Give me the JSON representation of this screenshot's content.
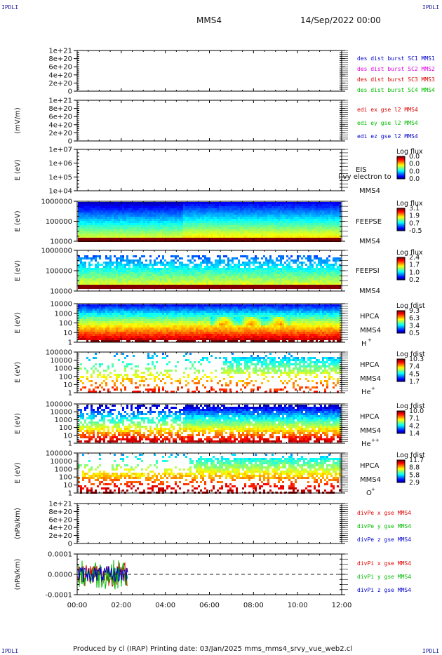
{
  "page": {
    "corner_tl": "IPDLI",
    "corner_tr": "IPDLI",
    "corner_bl": "IPDLI",
    "corner_br": "IPDLI",
    "title": "MMS4",
    "date": "14/Sep/2022 00:00",
    "footer": "Produced by cl (IRAP)   Printing date: 03/Jan/2025   mms_mms4_srvy_vue_web2.cl"
  },
  "colors": {
    "blue": "#0000cc",
    "magenta": "#dd00dd",
    "red": "#dd0000",
    "green": "#00bb00"
  },
  "chart_data": [
    {
      "type": "line",
      "id": "des-dist",
      "ylabel": "",
      "yticks": [
        "1e+21",
        "8e+20",
        "6e+20",
        "4e+20",
        "2e+20",
        "0"
      ],
      "ylim": [
        0,
        1e+21
      ],
      "series": [
        {
          "name": "des dist burst SC1 MMS1",
          "color": "#0000cc",
          "values": []
        },
        {
          "name": "des dist burst SC2 MMS2",
          "color": "#dd00dd",
          "values": []
        },
        {
          "name": "des dist burst SC3 MMS3",
          "color": "#dd0000",
          "values": []
        },
        {
          "name": "des dist burst SC4 MMS4",
          "color": "#00bb00",
          "values": []
        }
      ],
      "zero_line": true
    },
    {
      "type": "line",
      "id": "edi-e",
      "ylabel": "(mV/m)",
      "yticks": [
        "1e+21",
        "8e+20",
        "6e+20",
        "4e+20",
        "2e+20",
        "0"
      ],
      "ylim": [
        0,
        1e+21
      ],
      "series": [
        {
          "name": "edi ex gse l2 MMS4",
          "color": "#dd0000",
          "values": []
        },
        {
          "name": "edi ey gse l2 MMS4",
          "color": "#00bb00",
          "values": []
        },
        {
          "name": "edi ez gse l2 MMS4",
          "color": "#0000cc",
          "values": []
        }
      ],
      "zero_line": true
    },
    {
      "type": "heatmap",
      "id": "eis",
      "ylabel": "E (eV)",
      "yscale": "log",
      "yticks": [
        "1e+07",
        "1e+06",
        "1e+05",
        "1e+04"
      ],
      "ylim": [
        10000.0,
        10000000.0
      ],
      "labels": [
        "EIS",
        "MMS4"
      ],
      "overlay_text": "l)vy electron to",
      "colorbar": {
        "title": "Log flux",
        "ticks": [
          "0.0",
          "0.0",
          "0.0",
          "0.0"
        ]
      },
      "pattern": "empty"
    },
    {
      "type": "heatmap",
      "id": "feeps-e",
      "ylabel": "E (eV)",
      "yscale": "log",
      "yticks": [
        "1000000",
        "100000",
        "10000"
      ],
      "ylim": [
        10000.0,
        1000000.0
      ],
      "labels": [
        "FEEPSE",
        "MMS4"
      ],
      "colorbar": {
        "title": "Log flux",
        "ticks": [
          "3.1",
          "1.9",
          "0.7",
          "-0.5"
        ]
      },
      "pattern": "feepse"
    },
    {
      "type": "heatmap",
      "id": "feeps-i",
      "ylabel": "E (eV)",
      "yscale": "log",
      "yticks": [
        "1000000",
        "100000",
        "10000"
      ],
      "ylim": [
        10000.0,
        1000000.0
      ],
      "labels": [
        "FEEPSI",
        "MMS4"
      ],
      "colorbar": {
        "title": "Log flux",
        "ticks": [
          "2.4",
          "1.7",
          "1.0",
          "0.2"
        ]
      },
      "pattern": "feepsi"
    },
    {
      "type": "heatmap",
      "id": "hpca-h",
      "ylabel": "E (eV)",
      "yscale": "log",
      "yticks": [
        "10000",
        "1000",
        "100",
        "10",
        "1"
      ],
      "ylim": [
        1,
        10000.0
      ],
      "labels": [
        "HPCA",
        "MMS4"
      ],
      "species": "H",
      "charge": "+",
      "colorbar": {
        "title": "Log fdist",
        "ticks": [
          "9.3",
          "6.3",
          "3.4",
          "0.5"
        ]
      },
      "pattern": "hplus"
    },
    {
      "type": "heatmap",
      "id": "hpca-he1",
      "ylabel": "E (eV)",
      "yscale": "log",
      "yticks": [
        "100000",
        "10000",
        "1000",
        "100",
        "10",
        "1"
      ],
      "ylim": [
        1,
        100000.0
      ],
      "labels": [
        "HPCA",
        "MMS4"
      ],
      "species": "He",
      "charge": "+",
      "colorbar": {
        "title": "Log fdist",
        "ticks": [
          "10.3",
          "7.4",
          "4.5",
          "1.7"
        ]
      },
      "pattern": "heplus"
    },
    {
      "type": "heatmap",
      "id": "hpca-he2",
      "ylabel": "E (eV)",
      "yscale": "log",
      "yticks": [
        "100000",
        "10000",
        "1000",
        "100",
        "10",
        "1"
      ],
      "ylim": [
        1,
        100000.0
      ],
      "labels": [
        "HPCA",
        "MMS4"
      ],
      "species": "He",
      "charge": "++",
      "colorbar": {
        "title": "Log fdist",
        "ticks": [
          "10.0",
          "7.1",
          "4.2",
          "1.4"
        ]
      },
      "pattern": "heplusplus"
    },
    {
      "type": "heatmap",
      "id": "hpca-o",
      "ylabel": "E (eV)",
      "yscale": "log",
      "yticks": [
        "100000",
        "10000",
        "1000",
        "100",
        "10",
        "1"
      ],
      "ylim": [
        1,
        100000.0
      ],
      "labels": [
        "HPCA",
        "MMS4"
      ],
      "species": "O",
      "charge": "+",
      "colorbar": {
        "title": "Log fdist",
        "ticks": [
          "11.7",
          "8.8",
          "5.8",
          "2.9"
        ]
      },
      "pattern": "oplus"
    },
    {
      "type": "line",
      "id": "divpe",
      "ylabel": "(nPa/km)",
      "yticks": [
        "1e+21",
        "8e+20",
        "6e+20",
        "4e+20",
        "2e+20",
        "0"
      ],
      "ylim": [
        0,
        1e+21
      ],
      "series": [
        {
          "name": "divPe x gse MMS4",
          "color": "#dd0000",
          "values": []
        },
        {
          "name": "divPe y gse MMS4",
          "color": "#00bb00",
          "values": []
        },
        {
          "name": "divPe z gse MMS4",
          "color": "#0000cc",
          "values": []
        }
      ],
      "zero_line": true
    },
    {
      "type": "line",
      "id": "divpi",
      "ylabel": "(nPa/km)",
      "yticks": [
        "0.0001",
        "0.0000",
        "-0.0001"
      ],
      "ylim": [
        -0.00015,
        0.00015
      ],
      "data_end_hour": 2.3,
      "series": [
        {
          "name": "divPi x gse MMS4",
          "color": "#dd0000",
          "amplitude": 9e-05
        },
        {
          "name": "divPi y gse MMS4",
          "color": "#00bb00",
          "amplitude": 0.00011
        },
        {
          "name": "divPi z gse MMS4",
          "color": "#0000cc",
          "amplitude": 6e-05
        }
      ],
      "zero_line": true
    }
  ],
  "time_axis": {
    "labels": [
      "00:00",
      "02:00",
      "04:00",
      "06:00",
      "08:00",
      "10:00",
      "12:00"
    ],
    "range_hours": [
      0,
      12
    ]
  }
}
